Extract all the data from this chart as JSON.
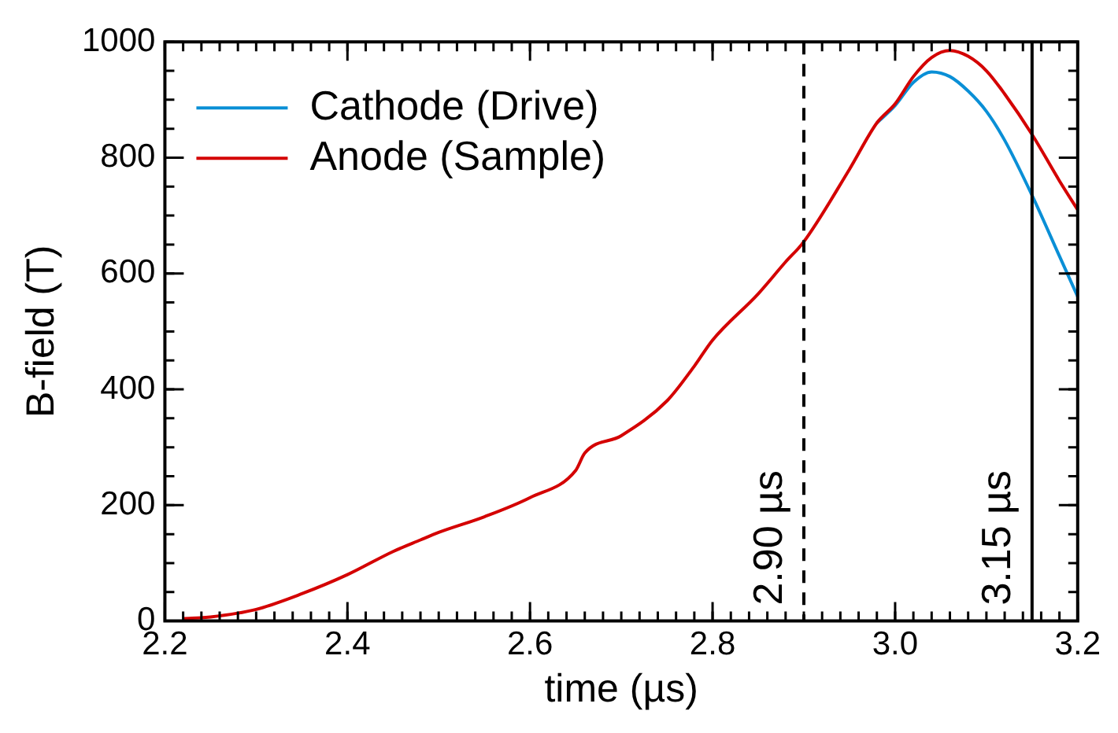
{
  "chart_data": {
    "type": "line",
    "xlabel": "time (µs)",
    "ylabel": "B-field (T)",
    "xlim": [
      2.2,
      3.2
    ],
    "xticks": [
      2.2,
      2.4,
      2.6,
      2.8,
      {
        "value": 3,
        "label": "3.0"
      },
      {
        "value": 3.2,
        "label": "3.2"
      }
    ],
    "ylim": [
      0,
      1000
    ],
    "yticks": [
      0,
      200,
      400,
      600,
      800,
      1000
    ],
    "grid": false,
    "legend": "top left",
    "marker": "none",
    "line_style": "solid",
    "series": [
      {
        "name": "Cathode (Drive)",
        "color": "#0a8fd6",
        "x": [
          2.98,
          3.0,
          3.02,
          3.04,
          3.06,
          3.08,
          3.1,
          3.12,
          3.15,
          3.18,
          3.2
        ],
        "values": [
          860,
          890,
          930,
          948,
          940,
          915,
          880,
          830,
          735,
          630,
          560
        ]
      },
      {
        "name": "Anode (Sample)",
        "color": "#d40000",
        "x": [
          2.22,
          2.25,
          2.3,
          2.35,
          2.4,
          2.45,
          2.48,
          2.5,
          2.55,
          2.6,
          2.65,
          2.66,
          2.7,
          2.75,
          2.78,
          2.8,
          2.85,
          2.88,
          2.9,
          2.95,
          2.98,
          3.0,
          3.02,
          3.04,
          3.06,
          3.08,
          3.1,
          3.12,
          3.15,
          3.18,
          3.2
        ],
        "values": [
          4,
          7,
          20,
          47,
          80,
          120,
          140,
          153,
          180,
          213,
          260,
          290,
          320,
          380,
          440,
          485,
          565,
          620,
          655,
          780,
          860,
          893,
          940,
          973,
          985,
          975,
          950,
          910,
          840,
          760,
          710
        ]
      }
    ],
    "ref_lines": [
      {
        "axis": "x",
        "value": 2.9,
        "label": "2.90 µs",
        "line_style": "dashed",
        "color": "#000000"
      },
      {
        "axis": "x",
        "value": 3.15,
        "label": "3.15 µs",
        "line_style": "solid",
        "color": "#000000"
      }
    ]
  }
}
